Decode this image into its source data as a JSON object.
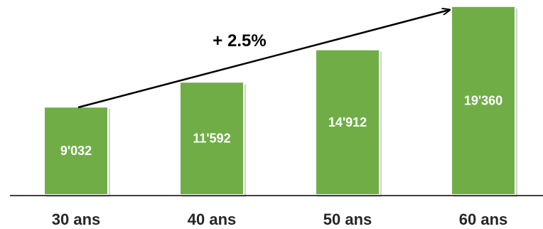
{
  "chart_data": {
    "type": "bar",
    "categories": [
      "30 ans",
      "40 ans",
      "50 ans",
      "60 ans"
    ],
    "values": [
      9032,
      11592,
      14912,
      19360
    ],
    "value_labels": [
      "9'032",
      "11'592",
      "14'912",
      "19'360"
    ],
    "ylim": [
      0,
      20000
    ],
    "annotation": "+ 2.5%",
    "grid": false,
    "bar_color": "#70AD47",
    "axis_color": "#404040",
    "arrow_color": "#000000"
  }
}
